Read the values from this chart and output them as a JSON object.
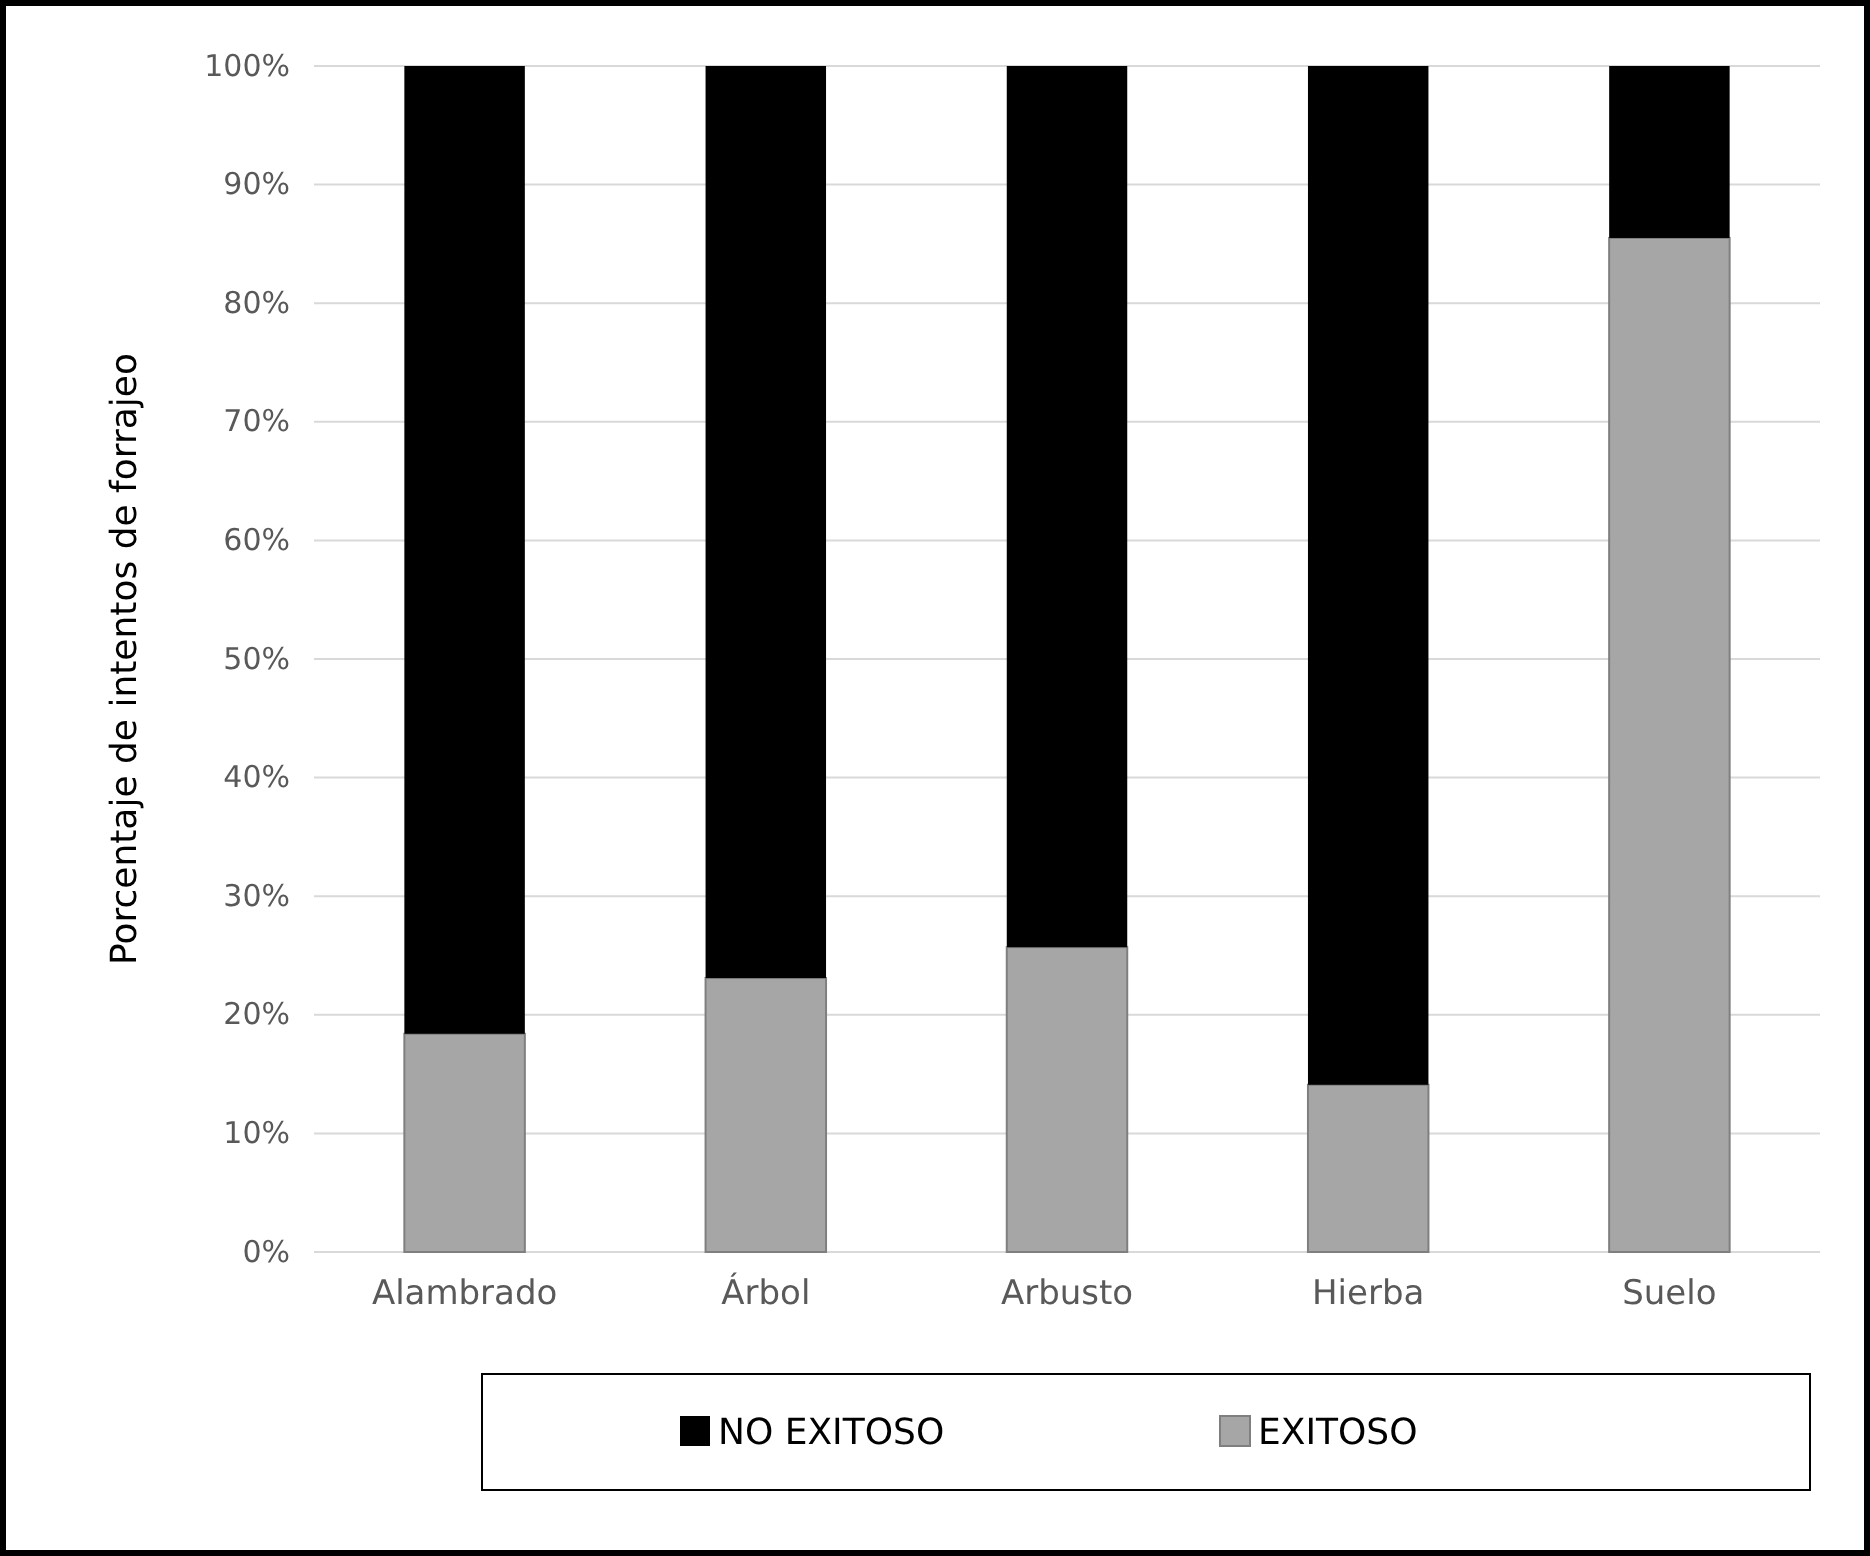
{
  "chart_data": {
    "type": "bar",
    "stacked": true,
    "ylabel": "Porcentaje de intentos de forrajeo",
    "categories": [
      "Alambrado",
      "Árbol",
      "Arbusto",
      "Hierba",
      "Suelo"
    ],
    "series": [
      {
        "name": "EXITOSO",
        "color": "#a6a6a6",
        "values": [
          18.4,
          23.1,
          25.7,
          14.1,
          85.5
        ]
      },
      {
        "name": "NO EXITOSO",
        "color": "#000000",
        "values": [
          81.6,
          76.9,
          74.3,
          85.9,
          14.5
        ]
      }
    ],
    "ylim": [
      0,
      100
    ],
    "yticks": [
      {
        "value": 0,
        "label": "0%"
      },
      {
        "value": 10,
        "label": "10%"
      },
      {
        "value": 20,
        "label": "20%"
      },
      {
        "value": 30,
        "label": "30%"
      },
      {
        "value": 40,
        "label": "40%"
      },
      {
        "value": 50,
        "label": "50%"
      },
      {
        "value": 60,
        "label": "60%"
      },
      {
        "value": 70,
        "label": "70%"
      },
      {
        "value": 80,
        "label": "80%"
      },
      {
        "value": 90,
        "label": "90%"
      },
      {
        "value": 100,
        "label": "100%"
      }
    ],
    "grid": "y",
    "legend": "bottom"
  }
}
